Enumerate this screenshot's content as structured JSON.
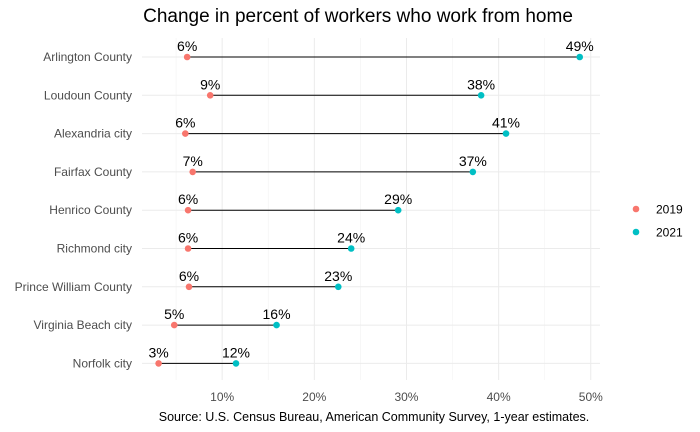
{
  "chart_data": {
    "type": "dumbbell",
    "title": "Change in percent of workers who work from home",
    "caption": "Source: U.S. Census Bureau, American Community Survey, 1-year estimates.",
    "categories": [
      "Arlington County",
      "Loudoun County",
      "Alexandria city",
      "Fairfax County",
      "Henrico County",
      "Richmond city",
      "Prince William County",
      "Virginia Beach city",
      "Norfolk city"
    ],
    "series": [
      {
        "name": "2019",
        "color": "#F8766D",
        "values": [
          6.2,
          8.7,
          6.0,
          6.8,
          6.3,
          6.3,
          6.4,
          4.8,
          3.1
        ],
        "labels": [
          "6%",
          "9%",
          "6%",
          "7%",
          "6%",
          "6%",
          "6%",
          "5%",
          "3%"
        ]
      },
      {
        "name": "2021",
        "color": "#00BFC4",
        "values": [
          48.8,
          38.1,
          40.8,
          37.2,
          29.1,
          24.0,
          22.6,
          15.9,
          11.5
        ],
        "labels": [
          "49%",
          "38%",
          "41%",
          "37%",
          "29%",
          "24%",
          "23%",
          "16%",
          "12%"
        ]
      }
    ],
    "x_ticks": [
      10,
      20,
      30,
      40,
      50
    ],
    "x_tick_labels": [
      "10%",
      "20%",
      "30%",
      "40%",
      "50%"
    ],
    "xlim": [
      1.3,
      51.0
    ],
    "legend_position": "right",
    "grid": true
  }
}
